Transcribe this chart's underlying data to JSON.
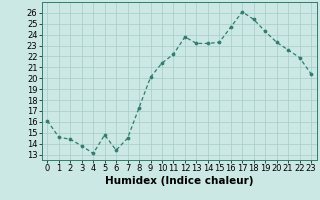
{
  "x": [
    0,
    1,
    2,
    3,
    4,
    5,
    6,
    7,
    8,
    9,
    10,
    11,
    12,
    13,
    14,
    15,
    16,
    17,
    18,
    19,
    20,
    21,
    22,
    23
  ],
  "y": [
    16.1,
    14.6,
    14.4,
    13.8,
    13.1,
    14.8,
    13.4,
    14.5,
    17.3,
    20.1,
    21.4,
    22.2,
    23.8,
    23.2,
    23.2,
    23.3,
    24.7,
    26.1,
    25.4,
    24.3,
    23.3,
    22.6,
    21.9,
    20.4
  ],
  "xlabel": "Humidex (Indice chaleur)",
  "ylabel": "",
  "ylim": [
    12.5,
    27
  ],
  "xlim": [
    -0.5,
    23.5
  ],
  "yticks": [
    13,
    14,
    15,
    16,
    17,
    18,
    19,
    20,
    21,
    22,
    23,
    24,
    25,
    26
  ],
  "xtick_labels": [
    "0",
    "1",
    "2",
    "3",
    "4",
    "5",
    "6",
    "7",
    "8",
    "9",
    "10",
    "11",
    "12",
    "13",
    "14",
    "15",
    "16",
    "17",
    "18",
    "19",
    "20",
    "21",
    "22",
    "23"
  ],
  "line_color": "#2e7d6e",
  "marker_color": "#2e7d6e",
  "bg_color": "#cce8e4",
  "grid_color": "#a8ccca",
  "font_color": "#000000",
  "font_size": 6.0,
  "xlabel_fontsize": 7.5
}
